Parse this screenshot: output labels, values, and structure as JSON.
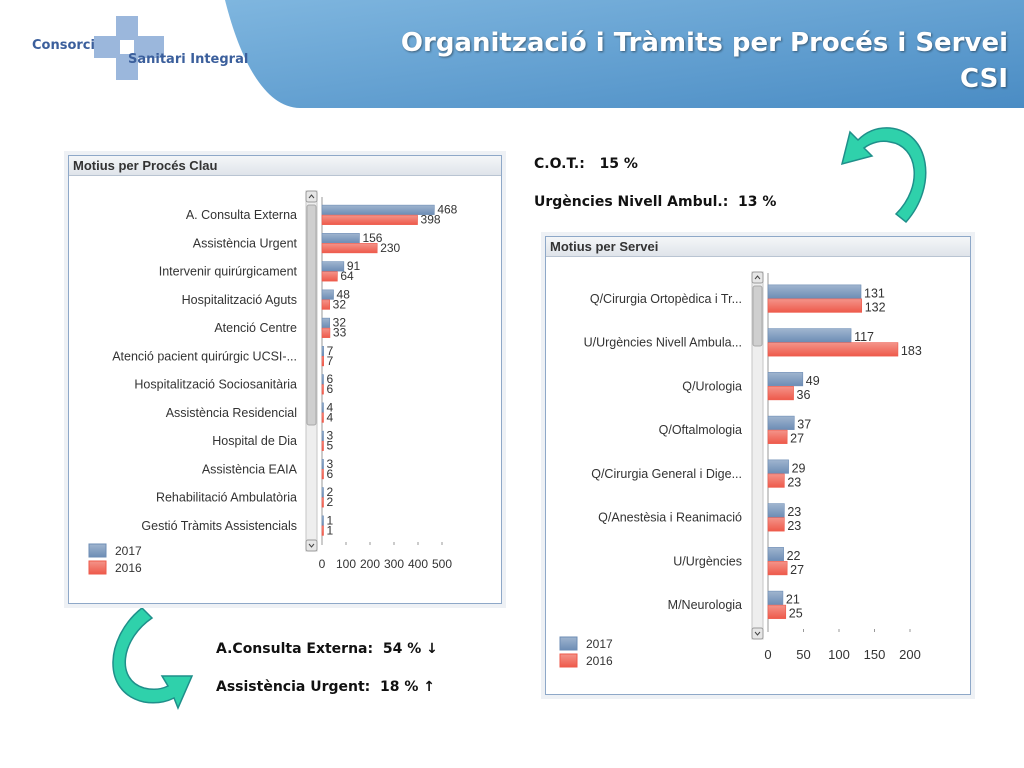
{
  "header": {
    "title_part1": "Organització i Tràmits",
    "title_part2": "per Procés i Servei",
    "title_line2": "CSI"
  },
  "logo": {
    "word1": "Consorci",
    "word2": "Sanitari Integral"
  },
  "stats_top": {
    "line1_label": "C.O.T.:",
    "line1_value": "15 %",
    "line2_label": "Urgències Nivell Ambul.:",
    "line2_value": "13 %"
  },
  "stats_bottom": {
    "line1_label": "A.Consulta Externa:",
    "line1_value": "54 % ↓",
    "line2_label": "Assistència Urgent:",
    "line2_value": "18 % ↑"
  },
  "colors": {
    "series_2017": "#6d8db5",
    "series_2016": "#ee5a4b",
    "header_blue": "#5d9bcd",
    "arrow": "#2fd1ab"
  },
  "icons": [
    "curved-arrow-icon",
    "scroll-up-icon",
    "scroll-down-icon",
    "logo-cross-icon"
  ],
  "chart_data": [
    {
      "type": "bar",
      "orientation": "horizontal",
      "title": "Motius per Procés Clau",
      "categories": [
        "A. Consulta Externa",
        "Assistència Urgent",
        "Intervenir quirúrgicament",
        "Hospitalització Aguts",
        "Atenció Centre",
        "Atenció pacient quirúrgic UCSI-...",
        "Hospitalització Sociosanitària",
        "Assistència Residencial",
        "Hospital de Dia",
        "Assistència EAIA",
        "Rehabilitació Ambulatòria",
        "Gestió Tràmits Assistencials"
      ],
      "series": [
        {
          "name": "2017",
          "values": [
            468,
            156,
            91,
            48,
            32,
            7,
            6,
            4,
            3,
            3,
            2,
            1
          ]
        },
        {
          "name": "2016",
          "values": [
            398,
            230,
            64,
            32,
            33,
            7,
            6,
            4,
            5,
            6,
            2,
            1
          ]
        }
      ],
      "xlim": [
        0,
        500
      ],
      "xticks": [
        "0",
        "100",
        "200",
        "300",
        "400",
        "500"
      ],
      "legend": "bottom-left"
    },
    {
      "type": "bar",
      "orientation": "horizontal",
      "title": "Motius per Servei",
      "categories": [
        "Q/Cirurgia Ortopèdica i Tr...",
        "U/Urgències Nivell Ambula...",
        "Q/Urologia",
        "Q/Oftalmologia",
        "Q/Cirurgia General i Dige...",
        "Q/Anestèsia i Reanimació",
        "U/Urgències",
        "M/Neurologia"
      ],
      "series": [
        {
          "name": "2017",
          "values": [
            131,
            117,
            49,
            37,
            29,
            23,
            22,
            21
          ]
        },
        {
          "name": "2016",
          "values": [
            132,
            183,
            36,
            27,
            23,
            23,
            27,
            25
          ]
        }
      ],
      "xlim": [
        0,
        200
      ],
      "xticks": [
        "0",
        "50",
        "100",
        "150",
        "200"
      ],
      "legend": "bottom-left"
    }
  ]
}
